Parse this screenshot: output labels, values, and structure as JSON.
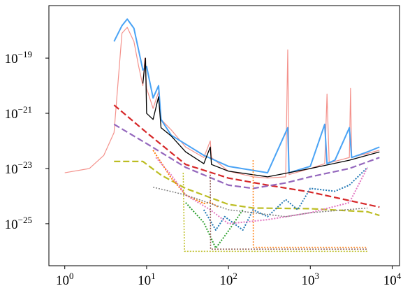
{
  "chart_data": {
    "type": "line",
    "xscale": "log",
    "yscale": "log",
    "xlim": [
      0.64,
      12300
    ],
    "ylim": [
      3e-27,
      8e-18
    ],
    "xticks": [
      {
        "value": 1,
        "label": "10",
        "exponent": "0"
      },
      {
        "value": 10,
        "label": "10",
        "exponent": "1"
      },
      {
        "value": 100,
        "label": "10",
        "exponent": "2"
      },
      {
        "value": 1000,
        "label": "10",
        "exponent": "3"
      },
      {
        "value": 10000,
        "label": "10",
        "exponent": "4"
      }
    ],
    "yticks": [
      {
        "value": 1e-25,
        "label": "10",
        "exponent": "−25"
      },
      {
        "value": 1e-23,
        "label": "10",
        "exponent": "−23"
      },
      {
        "value": 1e-21,
        "label": "10",
        "exponent": "−21"
      },
      {
        "value": 1e-19,
        "label": "10",
        "exponent": "−19"
      }
    ],
    "series": [
      {
        "color": "#f4928c",
        "style": "solid",
        "width": 1.2,
        "x": [
          1,
          2,
          3,
          4,
          5,
          5.8,
          7,
          8,
          9,
          9.5,
          10,
          12,
          14,
          15,
          20,
          30,
          50,
          60,
          62,
          100,
          200,
          300,
          500,
          530,
          550,
          1000,
          1500,
          1600,
          1700,
          3000,
          3100,
          3200,
          5000,
          7000
        ],
        "values": [
          7e-24,
          1e-23,
          3e-23,
          2e-22,
          8e-19,
          1.3e-18,
          4e-19,
          5e-20,
          1e-20,
          1e-19,
          8e-21,
          1.5e-21,
          6e-21,
          6e-22,
          2.5e-22,
          6e-23,
          2.5e-23,
          1e-22,
          2.5e-23,
          8e-24,
          5e-24,
          4.5e-24,
          5e-24,
          2e-19,
          6e-24,
          1e-23,
          1.5e-23,
          5e-21,
          1.6e-23,
          2.5e-23,
          8e-21,
          2.6e-23,
          3.5e-23,
          4.6e-23
        ]
      },
      {
        "color": "#4aa3f5",
        "style": "solid",
        "width": 2,
        "x": [
          4,
          5,
          5.8,
          7,
          9,
          10,
          12,
          14,
          15,
          20,
          50,
          100,
          300,
          530,
          550,
          1000,
          1500,
          1600,
          2000,
          3000,
          3200,
          5000,
          7000
        ],
        "values": [
          4e-19,
          1.5e-18,
          2.6e-18,
          1.2e-18,
          3.7e-20,
          5e-20,
          3.6e-21,
          1e-20,
          6e-22,
          1.6e-22,
          3e-23,
          1.2e-23,
          7e-24,
          3e-22,
          7e-24,
          1.2e-23,
          4e-22,
          1.5e-23,
          2e-23,
          3e-22,
          2.5e-23,
          4e-23,
          6e-23
        ]
      },
      {
        "color": "#000000",
        "style": "solid",
        "width": 1.3,
        "x": [
          9,
          9.7,
          10,
          12,
          14,
          15,
          20,
          30,
          50,
          60,
          62,
          100,
          300,
          1000,
          3000,
          7000
        ],
        "values": [
          1.2e-20,
          1e-19,
          1e-21,
          6e-22,
          4e-21,
          3e-22,
          1.5e-22,
          4e-23,
          1.5e-23,
          6e-23,
          1.4e-23,
          8e-24,
          5e-24,
          1e-23,
          2e-23,
          4e-23
        ]
      },
      {
        "color": "#d62728",
        "style": "dashed",
        "width": 2.2,
        "x": [
          4,
          10,
          30,
          100,
          300,
          1000,
          7000
        ],
        "values": [
          2e-21,
          2e-22,
          1.4e-23,
          4.5e-24,
          2.5e-24,
          1.4e-24,
          4e-25
        ]
      },
      {
        "color": "#9467bd",
        "style": "dashed",
        "width": 2.2,
        "x": [
          4,
          10,
          30,
          100,
          200,
          500,
          1000,
          3000,
          7000
        ],
        "values": [
          4e-22,
          8e-23,
          1.1e-23,
          2.5e-24,
          1.9e-24,
          3e-24,
          5e-24,
          1e-23,
          2.5e-23
        ]
      },
      {
        "color": "#bcbd22",
        "style": "dashed",
        "width": 2.2,
        "x": [
          4,
          9,
          15,
          30,
          100,
          200,
          1000,
          5000,
          7000
        ],
        "values": [
          1.8e-23,
          1.8e-23,
          5.8e-24,
          1.9e-24,
          5e-25,
          3.7e-25,
          3.5e-25,
          2.7e-25,
          2e-25
        ]
      },
      {
        "color": "#ff7f0e",
        "style": "dotted",
        "width": 2,
        "x": [
          12,
          20,
          30,
          50,
          60,
          75
        ],
        "values": [
          4.6e-23,
          4.5e-24,
          1.1e-24,
          5.4e-25,
          6e-25,
          4e-25
        ]
      },
      {
        "color": "#1f77b4",
        "style": "dotted",
        "width": 2,
        "x": [
          50,
          70,
          90,
          150,
          200,
          300,
          500,
          700,
          1000,
          2000,
          3000,
          5000
        ],
        "values": [
          3.2e-25,
          5.9e-26,
          1.8e-25,
          5.9e-26,
          3.2e-25,
          1.8e-25,
          7.5e-25,
          3.2e-25,
          1.9e-24,
          1.5e-24,
          2.5e-24,
          1.1e-23
        ]
      },
      {
        "color": "#2ca02c",
        "style": "dotted",
        "width": 2,
        "x": [
          30,
          50,
          70,
          100,
          150
        ],
        "values": [
          5.8e-25,
          1.1e-25,
          1.3e-26,
          5.5e-26,
          3.2e-25
        ]
      },
      {
        "color": "#e377c2",
        "style": "dotted",
        "width": 2,
        "x": [
          13,
          20,
          30,
          60,
          100,
          300,
          1000,
          3000,
          5000
        ],
        "values": [
          2.5e-23,
          5.8e-24,
          1.1e-24,
          3.2e-25,
          1e-25,
          1.4e-25,
          2.5e-25,
          5.8e-25,
          1.1e-23
        ]
      },
      {
        "color": "#7f7f7f",
        "style": "dotted",
        "width": 1.5,
        "x": [
          12,
          30,
          100,
          500,
          1000,
          5000
        ],
        "values": [
          2.1e-24,
          1.1e-24,
          3.2e-25,
          1.8e-25,
          2.5e-25,
          3.7e-25
        ]
      },
      {
        "color": "#8c564b",
        "style": "dotted",
        "width": 1.5,
        "x": [
          60,
          60.5,
          200,
          5000
        ],
        "values": [
          6e-24,
          1.2e-26,
          1.2e-26,
          1.2e-26
        ]
      },
      {
        "color": "#ff7f0e",
        "style": "dotted",
        "width": 1.5,
        "x": [
          200,
          201,
          5000
        ],
        "values": [
          2e-23,
          1.4e-26,
          1.4e-26
        ]
      },
      {
        "color": "#bcbd22",
        "style": "dotted",
        "width": 1.5,
        "x": [
          28,
          29,
          5000
        ],
        "values": [
          7e-24,
          1e-26,
          1e-26
        ]
      }
    ]
  }
}
